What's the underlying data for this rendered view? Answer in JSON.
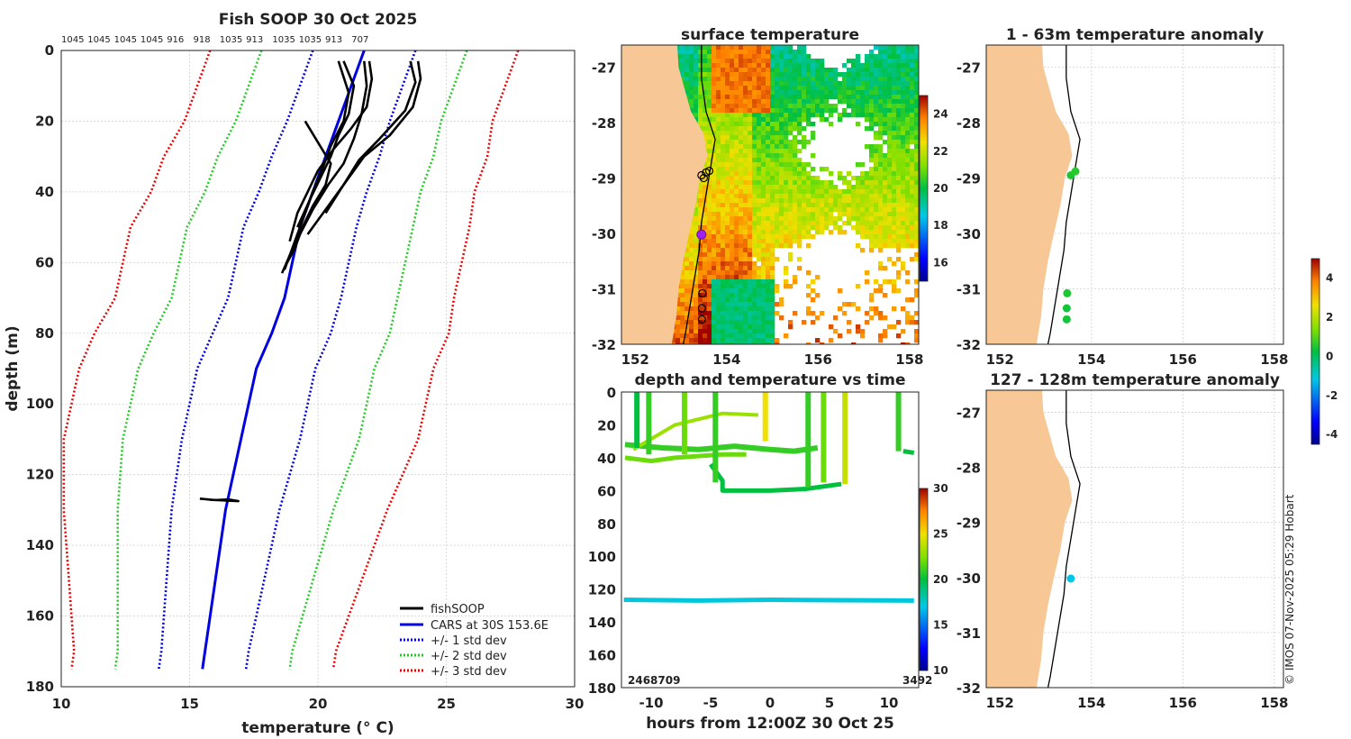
{
  "chart_data": [
    {
      "id": "profile",
      "type": "line",
      "title": "Fish SOOP 30 Oct 2025",
      "xlabel": "temperature (° C)",
      "ylabel": "depth (m)",
      "xlim": [
        10,
        30
      ],
      "ylim": [
        180,
        0
      ],
      "xticks": [
        "10",
        "15",
        "20",
        "25",
        "30"
      ],
      "yticks": [
        "0",
        "20",
        "40",
        "60",
        "80",
        "100",
        "120",
        "140",
        "160",
        "180"
      ],
      "top_labels": [
        "1045",
        "1045",
        "1045",
        "1045",
        "916",
        "918",
        "1035",
        "913",
        "1035",
        "1035",
        "913",
        "707"
      ],
      "legend": [
        "fishSOOP",
        "CARS at 30S 153.6E",
        "+/- 1 std dev",
        "+/- 2 std dev",
        "+/- 3 std dev"
      ],
      "cars_mean": {
        "depth": [
          0,
          10,
          20,
          30,
          40,
          50,
          60,
          70,
          80,
          90,
          100,
          110,
          120,
          130,
          140,
          150,
          160,
          170,
          175
        ],
        "temp": [
          21.8,
          21.3,
          20.8,
          20.3,
          19.8,
          19.3,
          19.0,
          18.7,
          18.2,
          17.6,
          17.3,
          17.0,
          16.7,
          16.4,
          16.2,
          16.0,
          15.8,
          15.6,
          15.5
        ]
      },
      "std1": [
        2.0,
        2.0,
        2.0,
        2.1,
        2.1,
        2.2,
        2.2,
        2.2,
        2.3,
        2.3,
        2.3,
        2.3,
        2.2,
        2.1,
        2.0,
        1.9,
        1.8,
        1.7,
        1.7
      ],
      "fish_profiles": [
        {
          "depth": [
            3,
            10,
            18,
            25,
            32,
            38,
            45,
            52,
            58,
            63
          ],
          "temp": [
            21.8,
            21.9,
            21.7,
            21.4,
            21.0,
            20.4,
            19.8,
            19.3,
            18.9,
            18.6
          ]
        },
        {
          "depth": [
            3,
            8,
            16,
            24,
            30,
            36,
            44,
            52
          ],
          "temp": [
            23.9,
            24.0,
            23.7,
            22.8,
            21.8,
            21.2,
            20.4,
            19.6
          ]
        },
        {
          "depth": [
            3,
            9,
            17,
            25,
            31,
            38,
            46
          ],
          "temp": [
            23.6,
            23.8,
            23.4,
            22.4,
            21.6,
            21.0,
            20.3
          ]
        },
        {
          "depth": [
            3,
            12,
            20,
            27,
            33,
            40,
            48,
            56,
            62
          ],
          "temp": [
            20.8,
            21.2,
            21.0,
            20.5,
            20.2,
            19.8,
            19.4,
            19.0,
            18.7
          ]
        },
        {
          "depth": [
            3,
            10,
            18,
            24,
            30,
            36,
            42,
            50
          ],
          "temp": [
            21.0,
            21.4,
            21.2,
            20.8,
            20.5,
            20.1,
            19.7,
            19.2
          ]
        },
        {
          "depth": [
            3,
            8,
            16,
            22,
            28,
            34,
            40,
            46,
            54
          ],
          "temp": [
            22.0,
            22.1,
            21.9,
            21.3,
            20.6,
            20.0,
            19.6,
            19.2,
            18.9
          ]
        },
        {
          "depth": [
            20,
            26,
            32,
            38,
            44,
            50,
            56,
            60
          ],
          "temp": [
            19.5,
            20.0,
            20.5,
            20.3,
            19.8,
            19.4,
            19.1,
            18.8
          ]
        },
        {
          "depth": [
            126.8,
            127.2,
            127.0,
            127.5,
            127.1
          ],
          "temp": [
            15.4,
            16.0,
            16.5,
            16.9,
            15.8
          ]
        }
      ]
    },
    {
      "id": "sst",
      "type": "heatmap",
      "title": "surface temperature",
      "xticks": [
        "152",
        "154",
        "156",
        "158"
      ],
      "yticks": [
        "-27",
        "-28",
        "-29",
        "-30",
        "-31",
        "-32"
      ],
      "xlim": [
        151.7,
        158.2
      ],
      "ylim": [
        -32,
        -26.6
      ],
      "colorbar_ticks": [
        "24",
        "22",
        "20",
        "18",
        "16"
      ],
      "colorbar_range": [
        15,
        25
      ]
    },
    {
      "id": "depth_time",
      "type": "scatter",
      "title": "depth and temperature vs time",
      "xlabel": "hours from 12:00Z 30 Oct 25",
      "xticks": [
        "-10",
        "-5",
        "0",
        "5",
        "10"
      ],
      "yticks": [
        "0",
        "20",
        "40",
        "60",
        "80",
        "100",
        "120",
        "140",
        "160",
        "180"
      ],
      "xlim": [
        -12.5,
        12.5
      ],
      "ylim": [
        180,
        0
      ],
      "colorbar_ticks": [
        "30",
        "25",
        "20",
        "15",
        "10"
      ],
      "colorbar_range": [
        10,
        30
      ],
      "bottom_labels": [
        "2468709",
        "3492"
      ]
    },
    {
      "id": "anom_upper",
      "type": "scatter",
      "title": "1 - 63m temperature anomaly",
      "xticks": [
        "152",
        "154",
        "156",
        "158"
      ],
      "yticks": [
        "-27",
        "-28",
        "-29",
        "-30",
        "-31",
        "-32"
      ],
      "xlim": [
        151.7,
        158.2
      ],
      "ylim": [
        -32,
        -26.6
      ],
      "points": [
        {
          "lon": 153.55,
          "lat": -28.95,
          "anom": 0.5
        },
        {
          "lon": 153.65,
          "lat": -28.88,
          "anom": 0.6
        },
        {
          "lon": 153.47,
          "lat": -31.08,
          "anom": 0.5
        },
        {
          "lon": 153.46,
          "lat": -31.35,
          "anom": 0.4
        },
        {
          "lon": 153.46,
          "lat": -31.55,
          "anom": 0.4
        }
      ]
    },
    {
      "id": "anom_lower",
      "type": "scatter",
      "title": "127 - 128m temperature anomaly",
      "xticks": [
        "152",
        "154",
        "156",
        "158"
      ],
      "yticks": [
        "-27",
        "-28",
        "-29",
        "-30",
        "-31",
        "-32"
      ],
      "xlim": [
        151.7,
        158.2
      ],
      "ylim": [
        -32,
        -26.6
      ],
      "points": [
        {
          "lon": 153.55,
          "lat": -30.02,
          "anom": -1.2
        }
      ]
    },
    {
      "id": "anom_colorbar",
      "type": "colorbar",
      "ticks": [
        "4",
        "2",
        "0",
        "-2",
        "-4"
      ],
      "range": [
        -4.5,
        5
      ]
    }
  ],
  "footer": {
    "credit": "© IMOS 07-Nov-2025 05:29 Hobart"
  }
}
